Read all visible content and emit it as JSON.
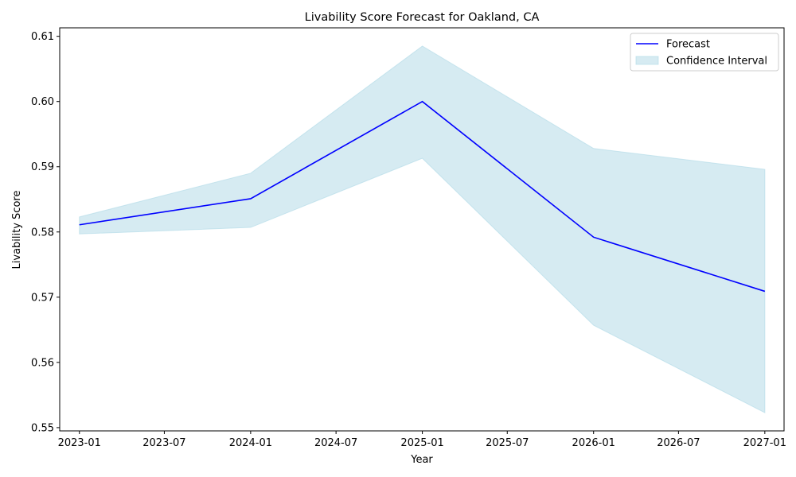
{
  "chart_data": {
    "type": "line",
    "title": "Livability Score Forecast for Oakland, CA",
    "xlabel": "Year",
    "ylabel": "Livability Score",
    "x": [
      "2023-01-01",
      "2024-01-01",
      "2025-01-01",
      "2026-01-01",
      "2027-01-01"
    ],
    "series": [
      {
        "name": "Forecast",
        "kind": "line",
        "color": "#0000ff",
        "values": [
          0.5811,
          0.5851,
          0.6,
          0.5792,
          0.5709
        ]
      },
      {
        "name": "Confidence Interval",
        "kind": "band",
        "color": "#add8e6",
        "lower": [
          0.5797,
          0.5807,
          0.5913,
          0.5657,
          0.5523
        ],
        "upper": [
          0.5823,
          0.589,
          0.6085,
          0.5928,
          0.5896
        ]
      }
    ],
    "xlim": [
      "2022-11-20",
      "2027-02-11"
    ],
    "ylim": [
      0.5495,
      0.6113
    ],
    "x_ticks": [
      "2023-01",
      "2023-07",
      "2024-01",
      "2024-07",
      "2025-01",
      "2025-07",
      "2026-01",
      "2026-07",
      "2027-01"
    ],
    "y_ticks": [
      "0.55",
      "0.56",
      "0.57",
      "0.58",
      "0.59",
      "0.60",
      "0.61"
    ],
    "legend_position": "top-right",
    "grid": false
  }
}
